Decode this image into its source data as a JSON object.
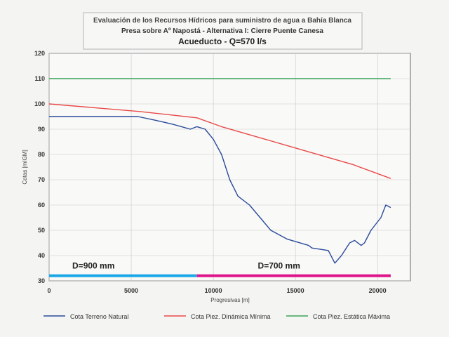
{
  "chart_data": {
    "type": "line",
    "title_line1": "Evaluación  de los Recursos Hídricos para suministro de agua a Bahía Blanca",
    "title_line2": "Presa sobre Aº Napostá - Alternativa I: Cierre Puente Canesa",
    "title_line3": "Acueducto  - Q=570 l/s",
    "xlabel": "Progresivas [m]",
    "ylabel": "Cotas [mIGM]",
    "xlim": [
      0,
      22000
    ],
    "ylim": [
      30,
      120
    ],
    "xticks": [
      0,
      5000,
      10000,
      15000,
      20000
    ],
    "yticks": [
      30,
      40,
      50,
      60,
      70,
      80,
      90,
      100,
      110,
      120
    ],
    "grid": true,
    "legend_position": "bottom",
    "series": [
      {
        "name": "Cota Terreno Natural",
        "color": "#2a4b9b",
        "points": [
          [
            0,
            95
          ],
          [
            5400,
            95
          ],
          [
            6500,
            93.5
          ],
          [
            7500,
            92
          ],
          [
            8600,
            90
          ],
          [
            9000,
            91
          ],
          [
            9500,
            90
          ],
          [
            10000,
            86
          ],
          [
            10500,
            80
          ],
          [
            11000,
            70
          ],
          [
            11500,
            63.5
          ],
          [
            12200,
            60
          ],
          [
            13500,
            50
          ],
          [
            14500,
            46.5
          ],
          [
            15800,
            44
          ],
          [
            16000,
            43
          ],
          [
            17000,
            42
          ],
          [
            17400,
            37
          ],
          [
            17800,
            40
          ],
          [
            18300,
            45
          ],
          [
            18600,
            46
          ],
          [
            19000,
            44
          ],
          [
            19200,
            45
          ],
          [
            19600,
            50
          ],
          [
            20200,
            55
          ],
          [
            20500,
            60
          ],
          [
            20800,
            59
          ]
        ]
      },
      {
        "name": "Cota Piez. Dinámica Mínima",
        "color": "#e84a4a",
        "points": [
          [
            0,
            100
          ],
          [
            5500,
            97
          ],
          [
            9000,
            94.5
          ],
          [
            10500,
            91
          ],
          [
            14500,
            83.5
          ],
          [
            18500,
            76
          ],
          [
            20800,
            70.5
          ]
        ]
      },
      {
        "name": "Cota Piez. Estática Máxima",
        "color": "#3aa35a",
        "points": [
          [
            0,
            110
          ],
          [
            20800,
            110
          ]
        ]
      }
    ],
    "diameter_segments": [
      {
        "label": "D=900 mm",
        "color": "#1aa7e8",
        "from": 0,
        "to": 9000,
        "y": 32,
        "label_x": 2700,
        "label_y": 36
      },
      {
        "label": "D=700 mm",
        "color": "#e0148a",
        "from": 9000,
        "to": 20800,
        "y": 32,
        "label_x": 14000,
        "label_y": 36
      }
    ]
  }
}
